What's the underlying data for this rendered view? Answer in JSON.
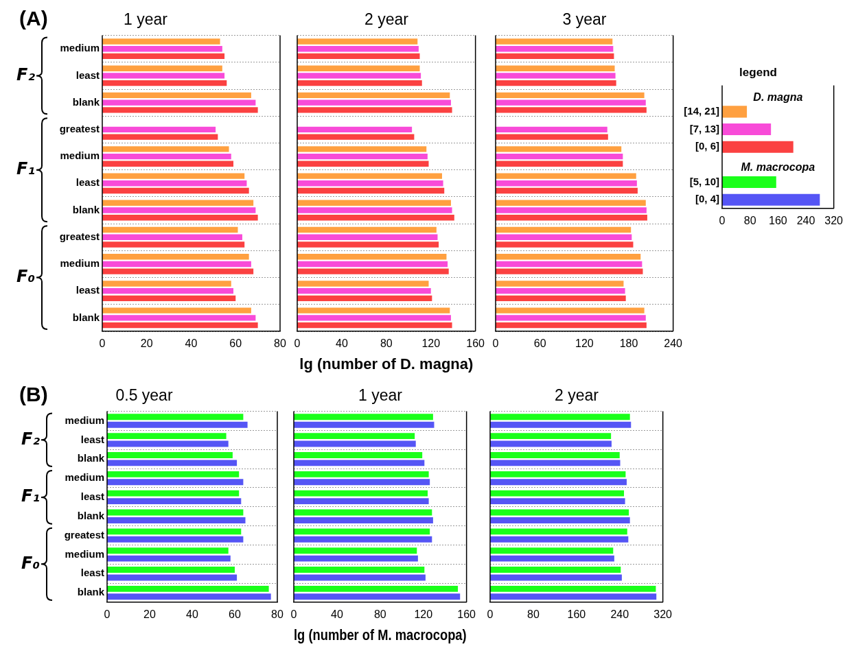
{
  "chart_data": [
    {
      "type": "bar",
      "orientation": "horizontal",
      "title": "1 year",
      "categories": [
        "medium",
        "least",
        "blank",
        "greatest",
        "medium",
        "least",
        "blank",
        "greatest",
        "medium",
        "least",
        "blank"
      ],
      "series": [
        {
          "color": "#ffa040",
          "values": [
            53,
            54,
            67,
            null,
            57,
            64,
            68,
            61,
            66,
            58,
            67
          ]
        },
        {
          "color": "#f84bd8",
          "values": [
            54,
            55,
            69,
            51,
            58,
            65,
            69,
            63,
            67,
            59,
            69
          ]
        },
        {
          "color": "#fb4141",
          "values": [
            55,
            56,
            70,
            52,
            59,
            66,
            70,
            64,
            68,
            60,
            70
          ]
        }
      ],
      "xlim": [
        0,
        80
      ],
      "xticks": [
        0,
        20,
        40,
        60,
        80
      ],
      "grid": "y",
      "annotations": [
        "(A)",
        "F₂",
        "F₁",
        "F₀"
      ]
    },
    {
      "type": "bar",
      "orientation": "horizontal",
      "title": "2 year",
      "xlabel": "lg (number of D. magna)",
      "categories": [
        null,
        null,
        null,
        null,
        null,
        null,
        null,
        null,
        null,
        null,
        null
      ],
      "series": [
        {
          "color": "#ffa040",
          "values": [
            108,
            110,
            137,
            null,
            116,
            130,
            138,
            125,
            134,
            118,
            137
          ]
        },
        {
          "color": "#f84bd8",
          "values": [
            109,
            111,
            138,
            103,
            117,
            131,
            139,
            126,
            135,
            120,
            138
          ]
        },
        {
          "color": "#fb4141",
          "values": [
            110,
            112,
            139,
            105,
            118,
            132,
            141,
            127,
            136,
            121,
            139
          ]
        }
      ],
      "xlim": [
        0,
        160
      ],
      "xticks": [
        0,
        40,
        80,
        120,
        160
      ],
      "grid": "y",
      "tick_labels": "x"
    },
    {
      "type": "bar",
      "orientation": "horizontal",
      "title": "3 year",
      "categories": [
        null,
        null,
        null,
        null,
        null,
        null,
        null,
        null,
        null,
        null,
        null
      ],
      "series": [
        {
          "color": "#ffa040",
          "values": [
            158,
            161,
            201,
            null,
            170,
            190,
            203,
            183,
            196,
            173,
            201
          ]
        },
        {
          "color": "#f84bd8",
          "values": [
            159,
            162,
            203,
            151,
            172,
            191,
            204,
            184,
            198,
            175,
            203
          ]
        },
        {
          "color": "#fb4141",
          "values": [
            160,
            163,
            204,
            152,
            172,
            192,
            205,
            186,
            199,
            176,
            204
          ]
        }
      ],
      "xlim": [
        0,
        240
      ],
      "xticks": [
        0,
        60,
        120,
        180,
        240
      ],
      "grid": "y",
      "tick_labels": "x"
    },
    {
      "type": "bar",
      "orientation": "horizontal",
      "title": "legend",
      "categories": [
        null,
        "[14, 21]",
        "[7, 13]",
        "[0, 6]",
        null,
        "[5, 10]",
        "[0, 4]"
      ],
      "values": [
        null,
        71,
        140,
        204,
        null,
        155,
        280
      ],
      "colors": [
        "#ffa040",
        "#ffa040",
        "#f84bd8",
        "#fb4141",
        "#1aff1a",
        "#1aff1a",
        "#5555f5"
      ],
      "xlim": [
        0,
        320
      ],
      "xticks": [
        0,
        80,
        160,
        240,
        320
      ],
      "annotations": [
        "D. magna",
        "M. macrocopa"
      ]
    },
    {
      "type": "bar",
      "orientation": "horizontal",
      "title": "0.5 year",
      "categories": [
        "medium",
        "least",
        "blank",
        "medium",
        "least",
        "blank",
        "greatest",
        "medium",
        "least",
        "blank"
      ],
      "series": [
        {
          "color": "#1aff1a",
          "values": [
            64,
            56,
            59,
            62,
            62,
            64,
            63,
            57,
            60,
            76
          ]
        },
        {
          "color": "#5555f5",
          "values": [
            66,
            57,
            61,
            64,
            63,
            65,
            64,
            58,
            61,
            77
          ]
        }
      ],
      "xlim": [
        0,
        80
      ],
      "xticks": [
        0,
        20,
        40,
        60,
        80
      ],
      "grid": "y",
      "annotations": [
        "(B)",
        "F₂",
        "F₁",
        "F₀"
      ]
    },
    {
      "type": "bar",
      "orientation": "horizontal",
      "title": "1 year",
      "xlabel": "lg (number of M. macrocopa)",
      "categories": [
        null,
        null,
        null,
        null,
        null,
        null,
        null,
        null,
        null,
        null
      ],
      "series": [
        {
          "color": "#1aff1a",
          "values": [
            129,
            112,
            119,
            125,
            124,
            128,
            126,
            114,
            121,
            152
          ]
        },
        {
          "color": "#5555f5",
          "values": [
            130,
            113,
            121,
            126,
            125,
            129,
            128,
            115,
            122,
            154
          ]
        }
      ],
      "xlim": [
        0,
        160
      ],
      "xticks": [
        0,
        40,
        80,
        120,
        160
      ],
      "grid": "y",
      "tick_labels": "x"
    },
    {
      "type": "bar",
      "orientation": "horizontal",
      "title": "2 year",
      "categories": [
        null,
        null,
        null,
        null,
        null,
        null,
        null,
        null,
        null,
        null
      ],
      "series": [
        {
          "color": "#1aff1a",
          "values": [
            259,
            224,
            240,
            251,
            248,
            257,
            254,
            228,
            242,
            307
          ]
        },
        {
          "color": "#5555f5",
          "values": [
            261,
            225,
            241,
            253,
            250,
            259,
            256,
            230,
            244,
            308
          ]
        }
      ],
      "xlim": [
        0,
        320
      ],
      "xticks": [
        0,
        80,
        160,
        240,
        320
      ],
      "grid": "y",
      "tick_labels": "x"
    }
  ]
}
